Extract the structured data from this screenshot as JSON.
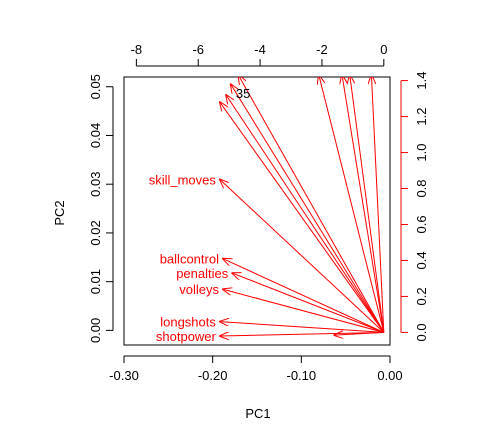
{
  "chart_data": {
    "type": "biplot",
    "xlabel": "PC1",
    "ylabel": "PC2",
    "xlim": [
      -0.3,
      0.0
    ],
    "ylim": [
      -0.003,
      0.052
    ],
    "x_ticks": [
      "-0.30",
      "-0.20",
      "-0.10",
      "0.00"
    ],
    "x_tick_values": [
      -0.3,
      -0.2,
      -0.1,
      0.0
    ],
    "y_ticks": [
      "0.00",
      "0.01",
      "0.02",
      "0.03",
      "0.04",
      "0.05"
    ],
    "y_tick_values": [
      0.0,
      0.01,
      0.02,
      0.03,
      0.04,
      0.05
    ],
    "top_axis": {
      "ticks": [
        "-8",
        "-6",
        "-4",
        "-2",
        "0"
      ],
      "values": [
        -8,
        -6,
        -4,
        -2,
        0
      ],
      "lim": [
        -8.4,
        0.2
      ]
    },
    "right_axis": {
      "ticks": [
        "0.0",
        "0.2",
        "0.4",
        "0.6",
        "0.8",
        "1.0",
        "1.2",
        "1.4"
      ],
      "values": [
        0.0,
        0.2,
        0.4,
        0.6,
        0.8,
        1.0,
        1.2,
        1.4
      ],
      "lim": [
        -0.07,
        1.42
      ]
    },
    "observation_label": {
      "text": "35",
      "x": -4.55,
      "y": 1.33
    },
    "arrow_color": "#ff0000",
    "axis_color": "#000000",
    "loading_arrows": [
      {
        "label": "",
        "x": -4.7,
        "y": 1.43
      },
      {
        "label": "",
        "x": -4.95,
        "y": 1.38
      },
      {
        "label": "",
        "x": -5.1,
        "y": 1.32
      },
      {
        "label": "",
        "x": -5.3,
        "y": 1.28
      },
      {
        "label": "skill_moves",
        "x": -5.3,
        "y": 0.85
      },
      {
        "label": "",
        "x": -2.1,
        "y": 1.43
      },
      {
        "label": "",
        "x": -1.35,
        "y": 1.43
      },
      {
        "label": "",
        "x": -1.1,
        "y": 1.43
      },
      {
        "label": "",
        "x": -0.4,
        "y": 1.43
      },
      {
        "label": "ballcontrol",
        "x": -5.2,
        "y": 0.41
      },
      {
        "label": "penalties",
        "x": -4.9,
        "y": 0.33
      },
      {
        "label": "volleys",
        "x": -5.2,
        "y": 0.24
      },
      {
        "label": "longshots",
        "x": -5.3,
        "y": 0.06
      },
      {
        "label": "shotpower",
        "x": -5.3,
        "y": -0.02
      },
      {
        "label": "",
        "x": -1.6,
        "y": -0.015
      }
    ]
  }
}
